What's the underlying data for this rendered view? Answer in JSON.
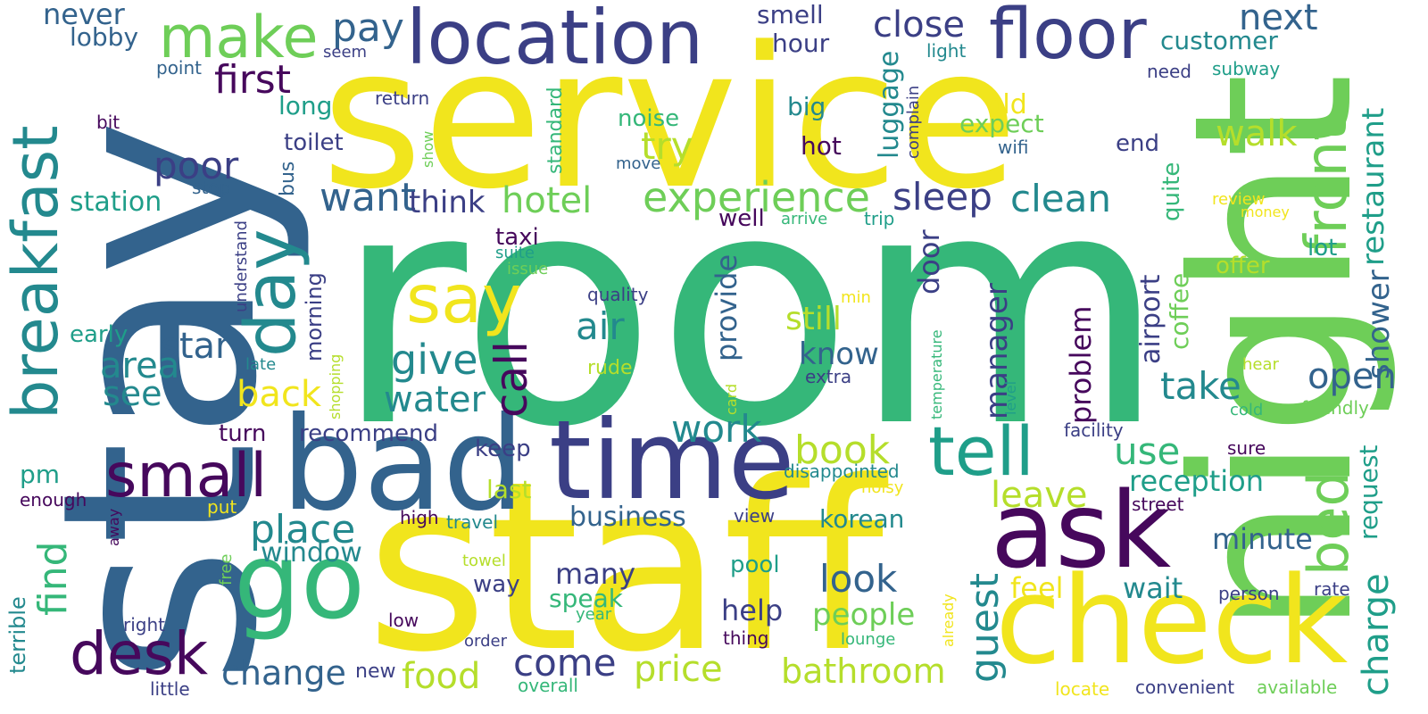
{
  "palette": {
    "purple": "#46085c",
    "indigo": "#3b3f85",
    "blue": "#33638d",
    "teal": "#23898e",
    "green": "#1f9e89",
    "mint": "#35b779",
    "lime": "#6ece58",
    "yellowgreen": "#b5de2b",
    "yellow": "#f1e51d"
  },
  "words": [
    {
      "text": "room",
      "c": "mint"
    },
    {
      "text": "stay",
      "c": "blue"
    },
    {
      "text": "service",
      "c": "yellow"
    },
    {
      "text": "staff",
      "c": "yellow"
    },
    {
      "text": "night",
      "c": "lime"
    },
    {
      "text": "bad",
      "c": "blue"
    },
    {
      "text": "time",
      "c": "indigo"
    },
    {
      "text": "check",
      "c": "yellow"
    },
    {
      "text": "location",
      "c": "indigo"
    },
    {
      "text": "ask",
      "c": "purple"
    },
    {
      "text": "go",
      "c": "mint"
    },
    {
      "text": "floor",
      "c": "indigo"
    },
    {
      "text": "breakfast",
      "c": "teal"
    },
    {
      "text": "make",
      "c": "lime"
    },
    {
      "text": "day",
      "c": "teal"
    },
    {
      "text": "tell",
      "c": "green"
    },
    {
      "text": "front",
      "c": "lime"
    },
    {
      "text": "small",
      "c": "purple"
    },
    {
      "text": "desk",
      "c": "purple"
    },
    {
      "text": "bed",
      "c": "lime"
    },
    {
      "text": "say",
      "c": "yellow"
    },
    {
      "text": "close",
      "c": "indigo"
    },
    {
      "text": "next",
      "c": "blue"
    },
    {
      "text": "pay",
      "c": "blue"
    },
    {
      "text": "first",
      "c": "purple"
    },
    {
      "text": "experience",
      "c": "lime"
    },
    {
      "text": "hotel",
      "c": "lime"
    },
    {
      "text": "want",
      "c": "blue"
    },
    {
      "text": "think",
      "c": "indigo"
    },
    {
      "text": "sleep",
      "c": "indigo"
    },
    {
      "text": "clean",
      "c": "teal"
    },
    {
      "text": "restaurant",
      "c": "green"
    },
    {
      "text": "walk",
      "c": "yellowgreen"
    },
    {
      "text": "try",
      "c": "yellowgreen"
    },
    {
      "text": "poor",
      "c": "indigo"
    },
    {
      "text": "give",
      "c": "teal"
    },
    {
      "text": "air",
      "c": "teal"
    },
    {
      "text": "water",
      "c": "teal"
    },
    {
      "text": "call",
      "c": "purple"
    },
    {
      "text": "take",
      "c": "teal"
    },
    {
      "text": "open",
      "c": "blue"
    },
    {
      "text": "shower",
      "c": "blue"
    },
    {
      "text": "star",
      "c": "blue"
    },
    {
      "text": "area",
      "c": "teal"
    },
    {
      "text": "see",
      "c": "teal"
    },
    {
      "text": "back",
      "c": "yellow"
    },
    {
      "text": "book",
      "c": "yellowgreen"
    },
    {
      "text": "work",
      "c": "teal"
    },
    {
      "text": "use",
      "c": "mint"
    },
    {
      "text": "leave",
      "c": "yellowgreen"
    },
    {
      "text": "reception",
      "c": "green"
    },
    {
      "text": "place",
      "c": "teal"
    },
    {
      "text": "find",
      "c": "mint"
    },
    {
      "text": "guest",
      "c": "teal"
    },
    {
      "text": "charge",
      "c": "green"
    },
    {
      "text": "look",
      "c": "blue"
    },
    {
      "text": "come",
      "c": "indigo"
    },
    {
      "text": "change",
      "c": "blue"
    },
    {
      "text": "price",
      "c": "yellowgreen"
    },
    {
      "text": "food",
      "c": "yellowgreen"
    },
    {
      "text": "bathroom",
      "c": "yellowgreen"
    },
    {
      "text": "people",
      "c": "lime"
    },
    {
      "text": "minute",
      "c": "blue"
    },
    {
      "text": "wait",
      "c": "teal"
    },
    {
      "text": "feel",
      "c": "yellow"
    },
    {
      "text": "many",
      "c": "indigo"
    },
    {
      "text": "help",
      "c": "indigo"
    },
    {
      "text": "window",
      "c": "teal"
    },
    {
      "text": "business",
      "c": "blue"
    },
    {
      "text": "korean",
      "c": "teal"
    },
    {
      "text": "still",
      "c": "yellowgreen"
    },
    {
      "text": "know",
      "c": "blue"
    },
    {
      "text": "provide",
      "c": "blue"
    },
    {
      "text": "door",
      "c": "indigo"
    },
    {
      "text": "manager",
      "c": "indigo"
    },
    {
      "text": "problem",
      "c": "purple"
    },
    {
      "text": "airport",
      "c": "indigo"
    },
    {
      "text": "coffee",
      "c": "lime"
    },
    {
      "text": "request",
      "c": "green"
    },
    {
      "text": "luggage",
      "c": "teal"
    },
    {
      "text": "customer",
      "c": "teal"
    },
    {
      "text": "hour",
      "c": "indigo"
    },
    {
      "text": "smell",
      "c": "indigo"
    },
    {
      "text": "lobby",
      "c": "blue"
    },
    {
      "text": "never",
      "c": "blue"
    },
    {
      "text": "long",
      "c": "green"
    },
    {
      "text": "toilet",
      "c": "indigo"
    },
    {
      "text": "station",
      "c": "green"
    },
    {
      "text": "offer",
      "c": "yellowgreen"
    },
    {
      "text": "lot",
      "c": "green"
    },
    {
      "text": "quite",
      "c": "mint"
    },
    {
      "text": "old",
      "c": "yellow"
    },
    {
      "text": "expect",
      "c": "lime"
    },
    {
      "text": "noise",
      "c": "mint"
    },
    {
      "text": "big",
      "c": "teal"
    },
    {
      "text": "hot",
      "c": "purple"
    },
    {
      "text": "end",
      "c": "indigo"
    },
    {
      "text": "recommend",
      "c": "indigo"
    },
    {
      "text": "turn",
      "c": "purple"
    },
    {
      "text": "keep",
      "c": "indigo"
    },
    {
      "text": "last",
      "c": "yellowgreen"
    },
    {
      "text": "taxi",
      "c": "purple"
    },
    {
      "text": "early",
      "c": "green"
    },
    {
      "text": "morning",
      "c": "indigo"
    },
    {
      "text": "pm",
      "c": "green"
    },
    {
      "text": "way",
      "c": "indigo"
    },
    {
      "text": "speak",
      "c": "mint"
    },
    {
      "text": "pool",
      "c": "green"
    },
    {
      "text": "standard",
      "c": "mint"
    },
    {
      "text": "bus",
      "c": "blue"
    },
    {
      "text": "well",
      "c": "purple"
    },
    {
      "text": "light",
      "c": "teal"
    },
    {
      "text": "subway",
      "c": "green"
    },
    {
      "text": "need",
      "c": "indigo"
    },
    {
      "text": "point",
      "c": "blue"
    },
    {
      "text": "seem",
      "c": "indigo"
    },
    {
      "text": "return",
      "c": "indigo"
    },
    {
      "text": "bit",
      "c": "purple"
    },
    {
      "text": "stop",
      "c": "blue"
    },
    {
      "text": "move",
      "c": "blue"
    },
    {
      "text": "wifi",
      "c": "blue"
    },
    {
      "text": "show",
      "c": "lime"
    },
    {
      "text": "complain",
      "c": "indigo"
    },
    {
      "text": "arrive",
      "c": "mint"
    },
    {
      "text": "trip",
      "c": "green"
    },
    {
      "text": "review",
      "c": "yellow"
    },
    {
      "text": "money",
      "c": "yellow"
    },
    {
      "text": "suite",
      "c": "green"
    },
    {
      "text": "issue",
      "c": "lime"
    },
    {
      "text": "quality",
      "c": "indigo"
    },
    {
      "text": "min",
      "c": "yellow"
    },
    {
      "text": "rude",
      "c": "yellowgreen"
    },
    {
      "text": "extra",
      "c": "indigo"
    },
    {
      "text": "temperature",
      "c": "mint"
    },
    {
      "text": "level",
      "c": "green"
    },
    {
      "text": "hear",
      "c": "yellowgreen"
    },
    {
      "text": "cold",
      "c": "mint"
    },
    {
      "text": "friendly",
      "c": "lime"
    },
    {
      "text": "facility",
      "c": "indigo"
    },
    {
      "text": "sure",
      "c": "purple"
    },
    {
      "text": "disappointed",
      "c": "teal"
    },
    {
      "text": "noisy",
      "c": "yellow"
    },
    {
      "text": "street",
      "c": "purple"
    },
    {
      "text": "understand",
      "c": "indigo"
    },
    {
      "text": "shopping",
      "c": "yellowgreen"
    },
    {
      "text": "late",
      "c": "teal"
    },
    {
      "text": "card",
      "c": "yellowgreen"
    },
    {
      "text": "enough",
      "c": "purple"
    },
    {
      "text": "put",
      "c": "yellow"
    },
    {
      "text": "away",
      "c": "purple"
    },
    {
      "text": "high",
      "c": "purple"
    },
    {
      "text": "travel",
      "c": "teal"
    },
    {
      "text": "view",
      "c": "indigo"
    },
    {
      "text": "free",
      "c": "lime"
    },
    {
      "text": "towel",
      "c": "yellowgreen"
    },
    {
      "text": "person",
      "c": "indigo"
    },
    {
      "text": "rate",
      "c": "indigo"
    },
    {
      "text": "terrible",
      "c": "teal"
    },
    {
      "text": "right",
      "c": "indigo"
    },
    {
      "text": "low",
      "c": "purple"
    },
    {
      "text": "year",
      "c": "mint"
    },
    {
      "text": "thing",
      "c": "purple"
    },
    {
      "text": "already",
      "c": "yellow"
    },
    {
      "text": "order",
      "c": "indigo"
    },
    {
      "text": "lounge",
      "c": "mint"
    },
    {
      "text": "new",
      "c": "indigo"
    },
    {
      "text": "little",
      "c": "indigo"
    },
    {
      "text": "overall",
      "c": "mint"
    },
    {
      "text": "locate",
      "c": "yellow"
    },
    {
      "text": "convenient",
      "c": "indigo"
    },
    {
      "text": "available",
      "c": "lime"
    }
  ]
}
